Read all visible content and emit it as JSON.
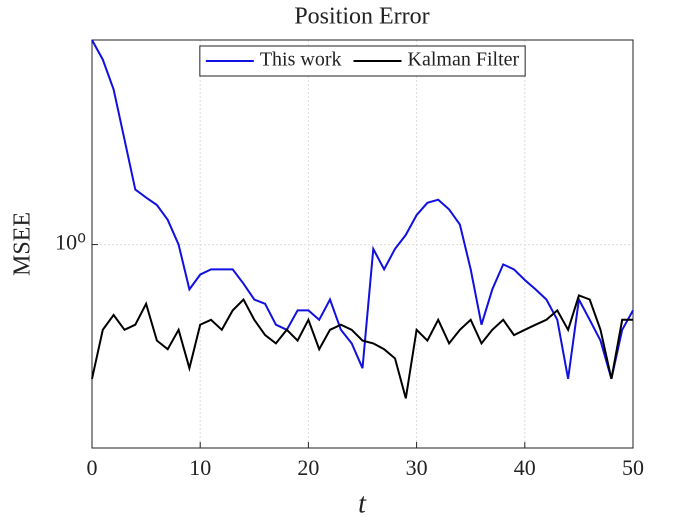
{
  "chart_data": {
    "type": "line",
    "title": "Position Error",
    "x_label": "t",
    "y_label": "MSEE",
    "x": [
      0,
      1,
      2,
      3,
      4,
      5,
      6,
      7,
      8,
      9,
      10,
      11,
      12,
      13,
      14,
      15,
      16,
      17,
      18,
      19,
      20,
      21,
      22,
      23,
      24,
      25,
      26,
      27,
      28,
      29,
      30,
      31,
      32,
      33,
      34,
      35,
      36,
      37,
      38,
      39,
      40,
      41,
      42,
      43,
      44,
      45,
      46,
      47,
      48,
      49,
      50
    ],
    "series": [
      {
        "name": "This work",
        "color": "#1010e0",
        "values": [
          4.2,
          3.66,
          2.97,
          2.09,
          1.47,
          1.39,
          1.32,
          1.19,
          1.0,
          0.73,
          0.81,
          0.84,
          0.84,
          0.84,
          0.76,
          0.68,
          0.66,
          0.57,
          0.55,
          0.63,
          0.63,
          0.59,
          0.68,
          0.55,
          0.5,
          0.42,
          0.97,
          0.84,
          0.97,
          1.07,
          1.23,
          1.34,
          1.37,
          1.28,
          1.15,
          0.84,
          0.57,
          0.73,
          0.87,
          0.84,
          0.78,
          0.73,
          0.68,
          0.59,
          0.39,
          0.68,
          0.59,
          0.51,
          0.39,
          0.55,
          0.63
        ]
      },
      {
        "name": "Kalman Filter",
        "color": "#000000",
        "values": [
          0.39,
          0.55,
          0.61,
          0.55,
          0.57,
          0.66,
          0.51,
          0.48,
          0.55,
          0.42,
          0.57,
          0.59,
          0.55,
          0.63,
          0.68,
          0.59,
          0.53,
          0.5,
          0.55,
          0.51,
          0.59,
          0.48,
          0.55,
          0.57,
          0.55,
          0.51,
          0.5,
          0.48,
          0.45,
          0.34,
          0.55,
          0.51,
          0.59,
          0.5,
          0.55,
          0.59,
          0.5,
          0.55,
          0.59,
          0.53,
          0.55,
          0.57,
          0.59,
          0.63,
          0.55,
          0.7,
          0.68,
          0.55,
          0.39,
          0.59,
          0.59
        ]
      }
    ],
    "xlim": [
      0,
      50
    ],
    "xticks": [
      0,
      10,
      20,
      30,
      40,
      50
    ],
    "ylim": [
      0.24,
      4.2
    ],
    "yticks": [
      {
        "value": 1,
        "label": "10⁰"
      }
    ],
    "log_y": true,
    "grid": true,
    "legend": "top"
  }
}
